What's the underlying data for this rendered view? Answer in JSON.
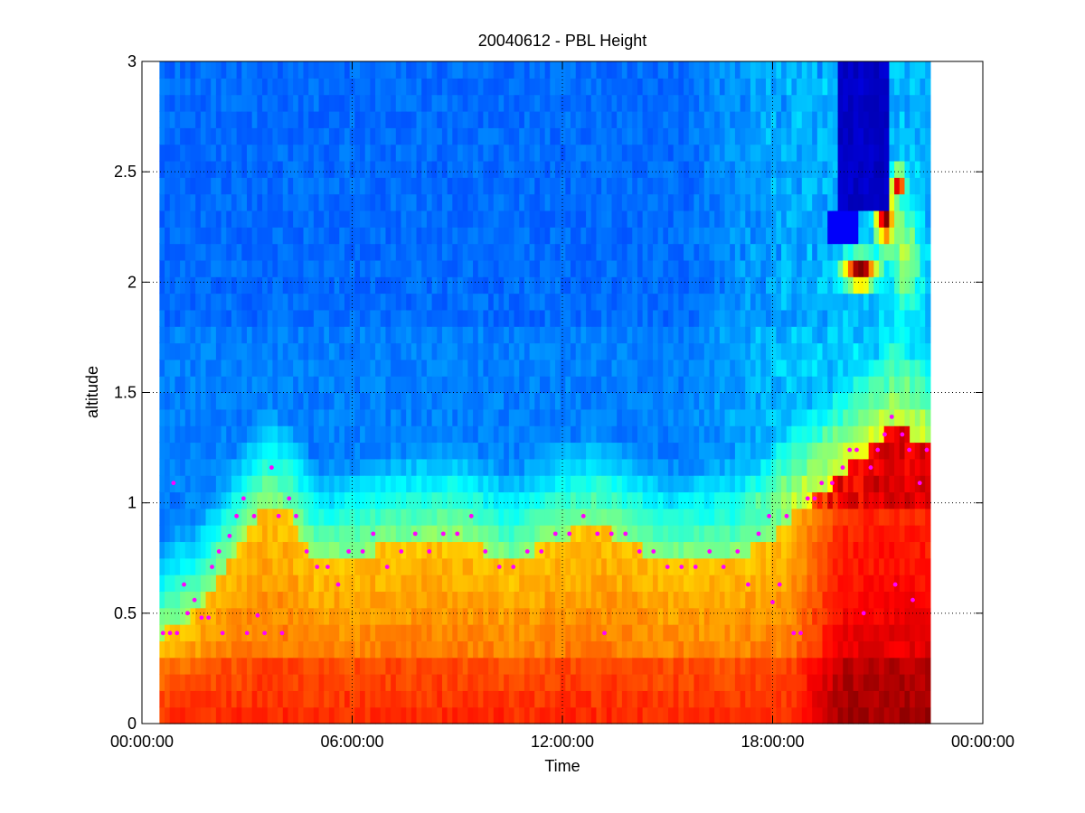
{
  "chart_data": {
    "type": "heatmap",
    "title": "20040612 - PBL Height",
    "xlabel": "Time",
    "ylabel": "altitude",
    "xlim_hours": [
      0,
      24
    ],
    "ylim": [
      0,
      3
    ],
    "x_ticks": [
      {
        "hours": 0,
        "label": "00:00:00"
      },
      {
        "hours": 6,
        "label": "06:00:00"
      },
      {
        "hours": 12,
        "label": "12:00:00"
      },
      {
        "hours": 18,
        "label": "18:00:00"
      },
      {
        "hours": 24,
        "label": "00:00:00"
      }
    ],
    "y_ticks": [
      {
        "value": 0,
        "label": "0"
      },
      {
        "value": 0.5,
        "label": "0.5"
      },
      {
        "value": 1,
        "label": "1"
      },
      {
        "value": 1.5,
        "label": "1.5"
      },
      {
        "value": 2,
        "label": "2"
      },
      {
        "value": 2.5,
        "label": "2.5"
      },
      {
        "value": 3,
        "label": "3"
      }
    ],
    "grid": true,
    "grid_style": "dotted",
    "colormap": "jet",
    "data_coverage_hours": [
      0.5,
      22.5
    ],
    "marker_color": "#ff00ff",
    "pbl_height_points": [
      [
        0.6,
        0.41
      ],
      [
        0.8,
        0.41
      ],
      [
        0.9,
        1.09
      ],
      [
        1.0,
        0.41
      ],
      [
        1.2,
        0.63
      ],
      [
        1.3,
        0.5
      ],
      [
        1.5,
        0.56
      ],
      [
        1.7,
        0.48
      ],
      [
        1.9,
        0.48
      ],
      [
        2.0,
        0.71
      ],
      [
        2.2,
        0.78
      ],
      [
        2.3,
        0.41
      ],
      [
        2.5,
        0.85
      ],
      [
        2.7,
        0.94
      ],
      [
        2.9,
        1.02
      ],
      [
        3.0,
        0.41
      ],
      [
        3.2,
        0.94
      ],
      [
        3.3,
        0.49
      ],
      [
        3.5,
        0.41
      ],
      [
        3.7,
        1.16
      ],
      [
        3.9,
        0.94
      ],
      [
        4.0,
        0.41
      ],
      [
        4.2,
        1.02
      ],
      [
        4.4,
        0.94
      ],
      [
        4.7,
        0.78
      ],
      [
        5.0,
        0.71
      ],
      [
        5.3,
        0.71
      ],
      [
        5.6,
        0.63
      ],
      [
        5.9,
        0.78
      ],
      [
        6.3,
        0.78
      ],
      [
        6.6,
        0.86
      ],
      [
        7.0,
        0.71
      ],
      [
        7.4,
        0.78
      ],
      [
        7.8,
        0.86
      ],
      [
        8.2,
        0.78
      ],
      [
        8.6,
        0.86
      ],
      [
        9.0,
        0.86
      ],
      [
        9.4,
        0.94
      ],
      [
        9.8,
        0.78
      ],
      [
        10.2,
        0.71
      ],
      [
        10.6,
        0.71
      ],
      [
        11.0,
        0.78
      ],
      [
        11.4,
        0.78
      ],
      [
        11.8,
        0.86
      ],
      [
        12.2,
        0.86
      ],
      [
        12.6,
        0.94
      ],
      [
        13.0,
        0.86
      ],
      [
        13.2,
        0.41
      ],
      [
        13.4,
        0.86
      ],
      [
        13.8,
        0.86
      ],
      [
        14.2,
        0.78
      ],
      [
        14.6,
        0.78
      ],
      [
        15.0,
        0.71
      ],
      [
        15.4,
        0.71
      ],
      [
        15.8,
        0.71
      ],
      [
        16.2,
        0.78
      ],
      [
        16.6,
        0.71
      ],
      [
        17.0,
        0.78
      ],
      [
        17.3,
        0.63
      ],
      [
        17.6,
        0.86
      ],
      [
        17.9,
        0.94
      ],
      [
        18.0,
        0.55
      ],
      [
        18.2,
        0.63
      ],
      [
        18.4,
        0.94
      ],
      [
        18.6,
        0.41
      ],
      [
        18.8,
        0.41
      ],
      [
        19.0,
        1.02
      ],
      [
        19.2,
        1.02
      ],
      [
        19.4,
        1.09
      ],
      [
        19.7,
        1.09
      ],
      [
        20.0,
        1.16
      ],
      [
        20.2,
        1.24
      ],
      [
        20.4,
        1.24
      ],
      [
        20.6,
        0.5
      ],
      [
        20.8,
        1.16
      ],
      [
        21.0,
        1.24
      ],
      [
        21.2,
        1.31
      ],
      [
        21.4,
        1.39
      ],
      [
        21.5,
        0.63
      ],
      [
        21.7,
        1.31
      ],
      [
        21.9,
        1.24
      ],
      [
        22.0,
        0.56
      ],
      [
        22.2,
        1.09
      ],
      [
        22.4,
        1.24
      ]
    ]
  }
}
